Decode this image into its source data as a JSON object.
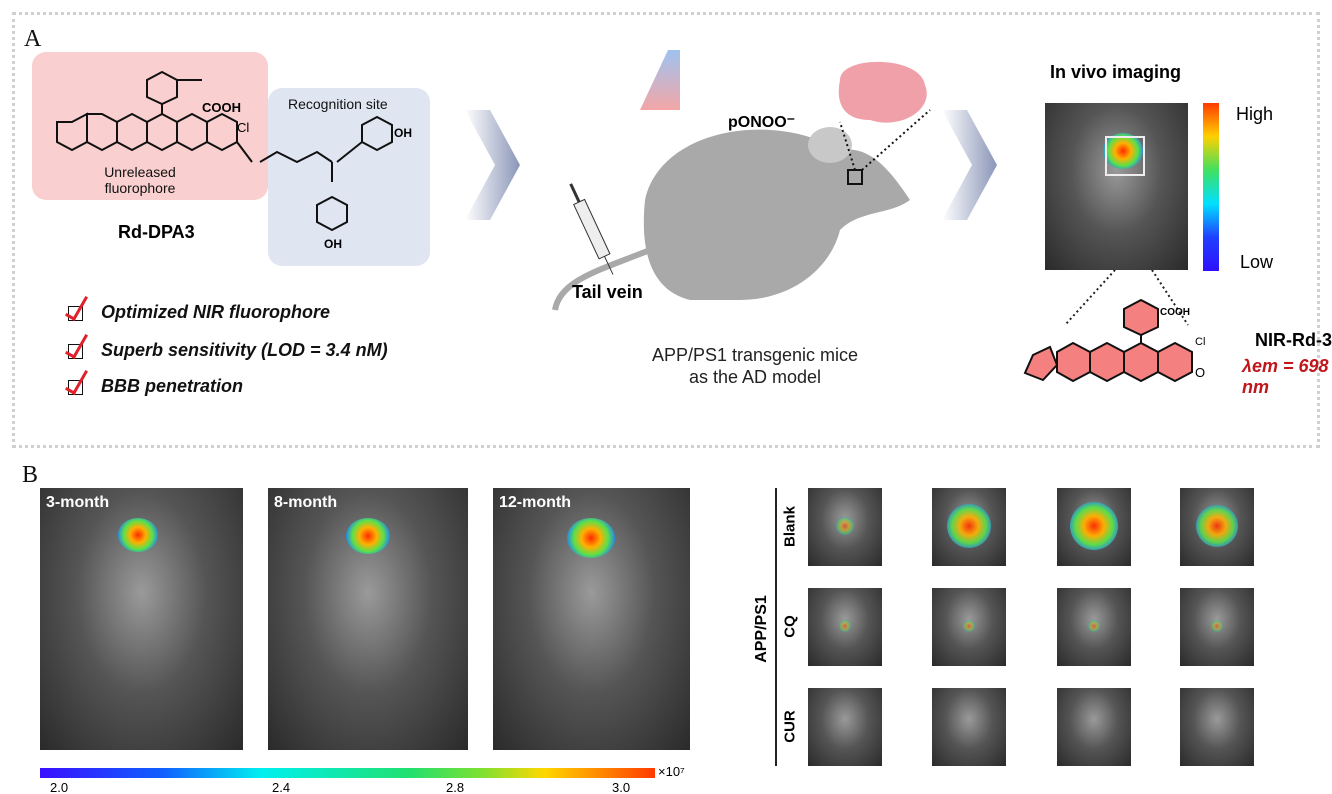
{
  "panel_a": {
    "label": "A",
    "unreleased": "Unreleased\nfluorophore",
    "recognition_site": "Recognition site",
    "probe_name": "Rd-DPA3",
    "cooh": "COOH",
    "cl": "Cl",
    "oh_top": "OH",
    "oh_bottom": "OH",
    "features": [
      "Optimized NIR fluorophore",
      "Superb sensitivity (LOD = 3.4 nM)",
      "BBB penetration"
    ],
    "analyte": "pONOO⁻",
    "tail_vein": "Tail vein",
    "model_line1": "APP/PS1 transgenic mice",
    "model_line2": "as the AD model",
    "in_vivo_title": "In vivo imaging",
    "colorbar_high": "High",
    "colorbar_low": "Low",
    "product_name": "NIR-Rd-3",
    "product_cooh": "COOH",
    "product_cl": "Cl",
    "emission": "λem = 698 nm",
    "colors": {
      "pink_box": "#f9cfcf",
      "blue_box": "#dfe6f1",
      "check_red": "#e0202a",
      "emission_red": "#c0161c"
    }
  },
  "panel_b": {
    "label": "B",
    "ages": [
      "3-month",
      "8-month",
      "12-month"
    ],
    "colorbar_ticks": [
      "2.0",
      "2.4",
      "2.8",
      "3.0"
    ],
    "colorbar_unit": "×10⁷",
    "group_label": "APP/PS1",
    "rows": [
      "Blank",
      "CQ",
      "CUR"
    ],
    "signal_levels": [
      [
        0.2,
        0.85,
        0.95,
        0.8
      ],
      [
        0.05,
        0.05,
        0.05,
        0.05
      ],
      [
        0,
        0,
        0,
        0
      ]
    ]
  }
}
